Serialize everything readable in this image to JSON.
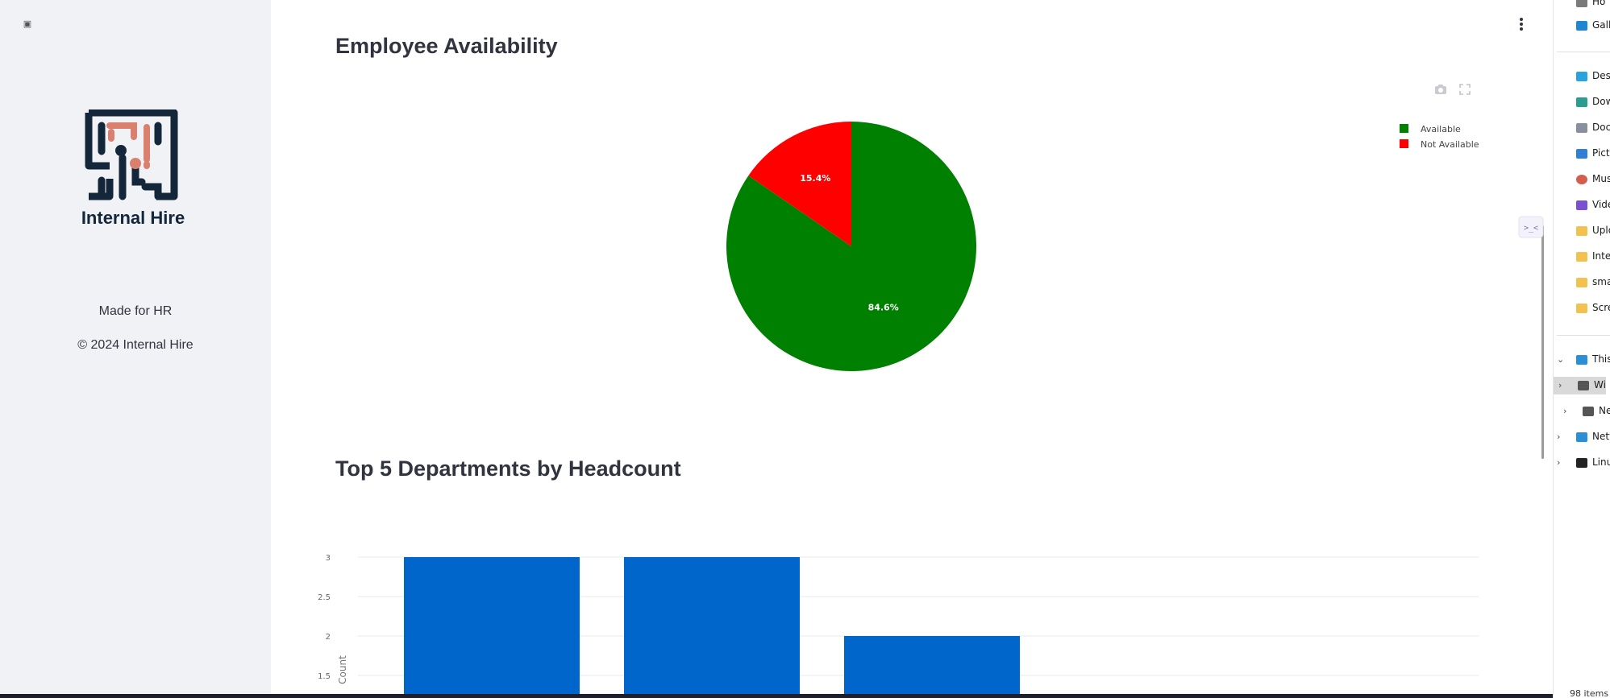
{
  "sidebar": {
    "toggle_icon": "keyboard-double-arrow-icon",
    "logo_text": "Internal Hire",
    "made_for": "Made for HR",
    "copyright": "© 2024 Internal Hire"
  },
  "main": {
    "menu_icon": "more-vert-icon",
    "availability_title": "Employee Availability",
    "departments_title": "Top 5 Departments by Headcount"
  },
  "charts": {
    "modebar": {
      "camera_icon": "camera-icon",
      "fullscreen_icon": "fullscreen-icon"
    }
  },
  "chart_data": [
    {
      "type": "pie",
      "title": "Employee Availability",
      "labels": [
        "Available",
        "Not Available"
      ],
      "values": [
        84.6,
        15.4
      ],
      "value_labels": [
        "84.6%",
        "15.4%"
      ],
      "colors": [
        "#008000",
        "#ff0000"
      ],
      "legend": "top-right"
    },
    {
      "type": "bar",
      "title": "Top 5 Departments by Headcount",
      "categories": [
        "",
        "",
        ""
      ],
      "values": [
        3,
        3,
        2
      ],
      "ylabel": "Count",
      "ylim": [
        1.5,
        3
      ],
      "yticks": [
        "1.5",
        "2",
        "2.5",
        "3"
      ],
      "color": "#0066cc",
      "grid": true
    }
  ],
  "explorer": {
    "items": [
      {
        "label": "Ho",
        "icon": "home-icon"
      },
      {
        "label": "Gall",
        "icon": "gallery-icon"
      },
      {
        "label": "Desk",
        "icon": "desktop-icon"
      },
      {
        "label": "Dow",
        "icon": "download-icon"
      },
      {
        "label": "Doc",
        "icon": "documents-icon"
      },
      {
        "label": "Pict",
        "icon": "pictures-icon"
      },
      {
        "label": "Mus",
        "icon": "music-icon"
      },
      {
        "label": "Vide",
        "icon": "videos-icon"
      },
      {
        "label": "Uplo",
        "icon": "folder-icon"
      },
      {
        "label": "Inte",
        "icon": "folder-icon"
      },
      {
        "label": "sma",
        "icon": "folder-icon"
      },
      {
        "label": "Scre",
        "icon": "folder-icon"
      },
      {
        "label": "This",
        "icon": "this-pc-icon"
      },
      {
        "label": "Wi",
        "icon": "windows-drive-icon"
      },
      {
        "label": "Ne",
        "icon": "drive-icon"
      },
      {
        "label": "Netv",
        "icon": "network-icon"
      },
      {
        "label": "Linu",
        "icon": "linux-icon"
      }
    ],
    "status": "98 items",
    "collapse_icon": "collapse-panel-icon"
  }
}
